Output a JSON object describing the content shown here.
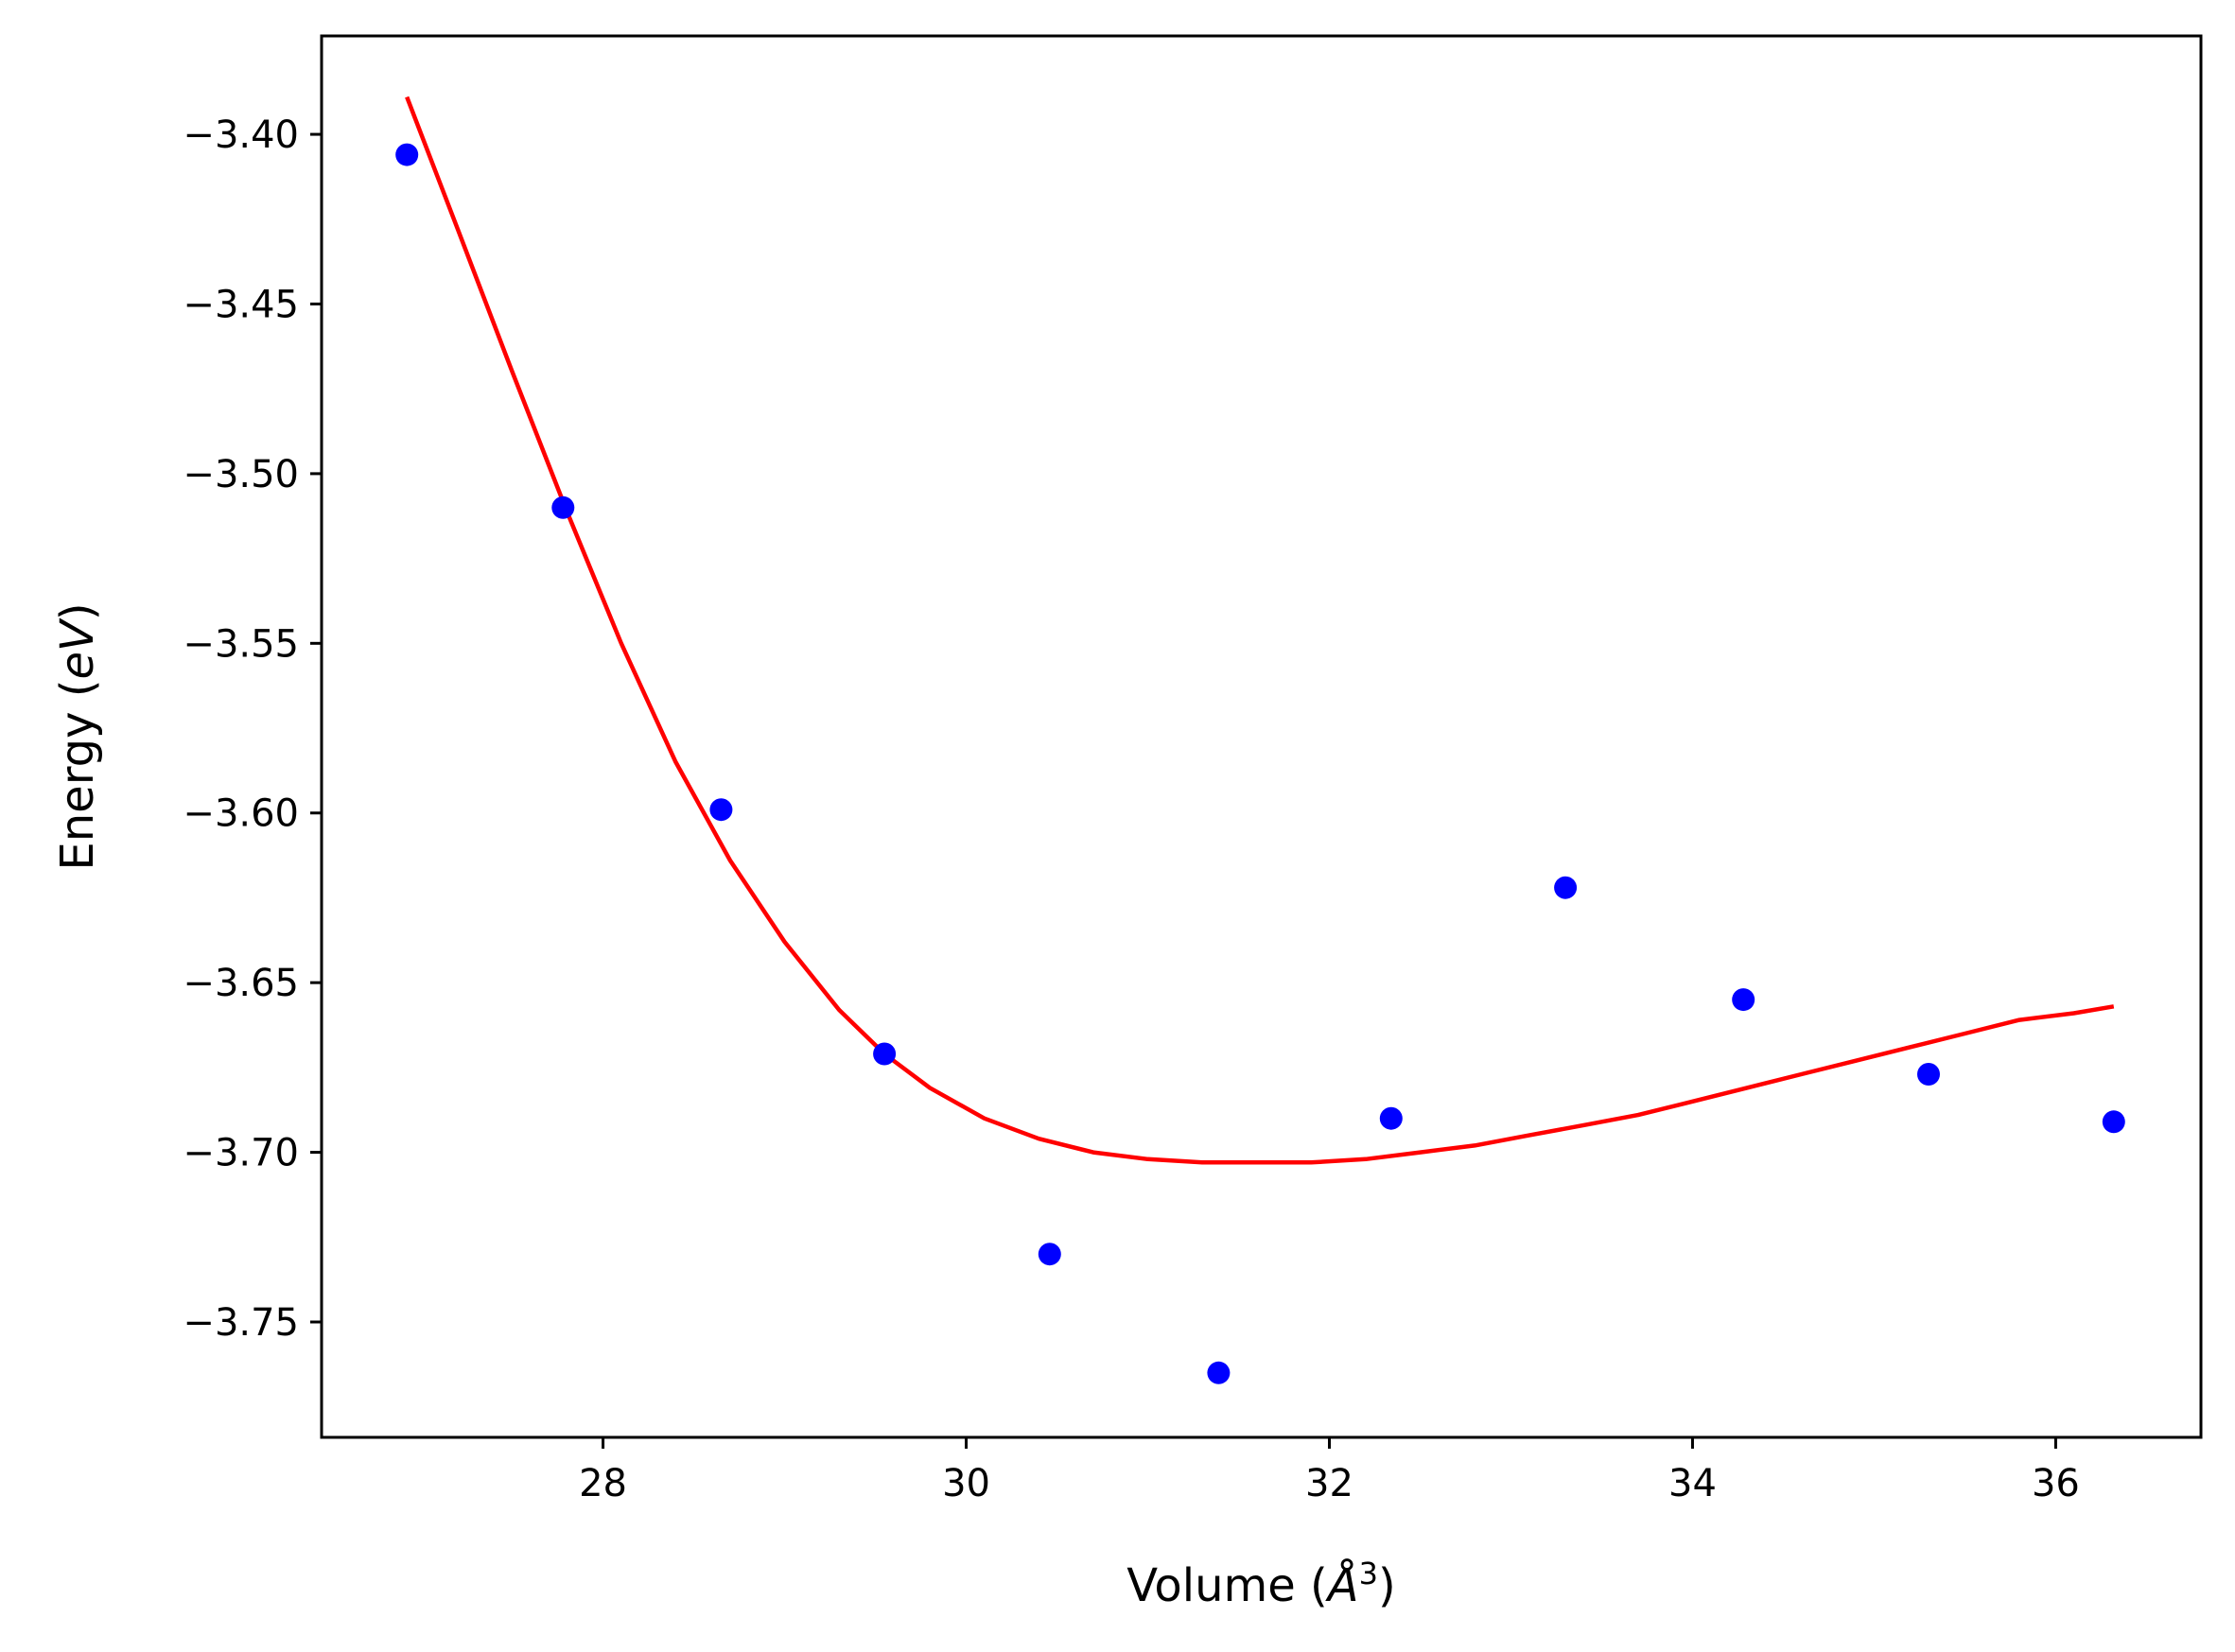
{
  "chart_data": {
    "type": "scatter",
    "xlabel": "Volume",
    "xlabel_unit_base": "Å",
    "xlabel_unit_exp": "3",
    "ylabel": "Energy",
    "ylabel_unit": "eV",
    "xlim": [
      26.45,
      36.8
    ],
    "ylim": [
      -3.784,
      -3.371
    ],
    "x_ticks": [
      28,
      30,
      32,
      34,
      36
    ],
    "y_ticks": [
      -3.4,
      -3.45,
      -3.5,
      -3.55,
      -3.6,
      -3.65,
      -3.7,
      -3.75
    ],
    "x_tick_labels": [
      "28",
      "30",
      "32",
      "34",
      "36"
    ],
    "y_tick_labels": [
      "−3.40",
      "−3.45",
      "−3.50",
      "−3.55",
      "−3.60",
      "−3.65",
      "−3.70",
      "−3.75"
    ],
    "grid": false,
    "series": [
      {
        "kind": "points",
        "color": "#0000ff",
        "points": [
          [
            26.92,
            -3.406
          ],
          [
            27.78,
            -3.51
          ],
          [
            28.65,
            -3.599
          ],
          [
            29.55,
            -3.671
          ],
          [
            30.46,
            -3.73
          ],
          [
            31.39,
            -3.765
          ],
          [
            32.34,
            -3.69
          ],
          [
            33.3,
            -3.622
          ],
          [
            34.28,
            -3.655
          ],
          [
            35.3,
            -3.677
          ],
          [
            36.32,
            -3.691
          ]
        ]
      },
      {
        "kind": "fit-curve",
        "color": "#ff0000",
        "points": [
          [
            26.92,
            -3.389
          ],
          [
            27.2,
            -3.428
          ],
          [
            27.5,
            -3.47
          ],
          [
            27.8,
            -3.511
          ],
          [
            28.1,
            -3.55
          ],
          [
            28.4,
            -3.585
          ],
          [
            28.7,
            -3.614
          ],
          [
            29.0,
            -3.638
          ],
          [
            29.3,
            -3.658
          ],
          [
            29.55,
            -3.671
          ],
          [
            29.8,
            -3.681
          ],
          [
            30.1,
            -3.69
          ],
          [
            30.4,
            -3.696
          ],
          [
            30.7,
            -3.7
          ],
          [
            31.0,
            -3.702
          ],
          [
            31.3,
            -3.703
          ],
          [
            31.6,
            -3.703
          ],
          [
            31.9,
            -3.703
          ],
          [
            32.2,
            -3.702
          ],
          [
            32.5,
            -3.7
          ],
          [
            32.8,
            -3.698
          ],
          [
            33.1,
            -3.695
          ],
          [
            33.4,
            -3.692
          ],
          [
            33.7,
            -3.689
          ],
          [
            34.0,
            -3.685
          ],
          [
            34.3,
            -3.681
          ],
          [
            34.6,
            -3.677
          ],
          [
            34.9,
            -3.673
          ],
          [
            35.2,
            -3.669
          ],
          [
            35.5,
            -3.665
          ],
          [
            35.8,
            -3.661
          ],
          [
            36.1,
            -3.659
          ],
          [
            36.32,
            -3.657
          ]
        ]
      }
    ]
  }
}
